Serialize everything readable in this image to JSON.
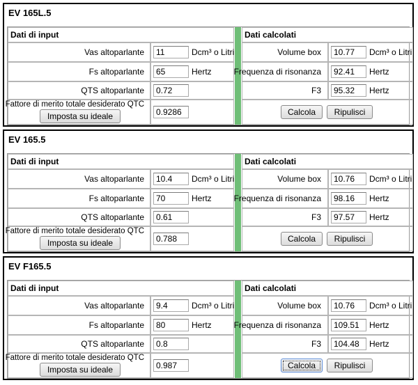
{
  "panels": [
    {
      "title": "EV 165L.5",
      "input_header": "Dati di input",
      "calc_header": "Dati calcolati",
      "vas_label": "Vas altoparlante",
      "vas_value": "11",
      "vas_unit": "Dcm³ o Litri",
      "fs_label": "Fs altoparlante",
      "fs_value": "65",
      "fs_unit": "Hertz",
      "qts_label": "QTS altoparlante",
      "qts_value": "0.72",
      "qtc_label": "Fattore di merito totale desiderato QTC",
      "qtc_value": "0.9286",
      "ideal_button": "Imposta su ideale",
      "vb_label": "Volume box",
      "vb_value": "10.77",
      "vb_unit": "Dcm³ o Litri",
      "fr_label": "Frequenza di risonanza",
      "fr_value": "92.41",
      "fr_unit": "Hertz",
      "f3_label": "F3",
      "f3_value": "95.32",
      "f3_unit": "Hertz",
      "calc_button": "Calcola",
      "clear_button": "Ripulisci"
    },
    {
      "title": "EV 165.5",
      "input_header": "Dati di input",
      "calc_header": "Dati calcolati",
      "vas_label": "Vas altoparlante",
      "vas_value": "10.4",
      "vas_unit": "Dcm³ o Litri",
      "fs_label": "Fs altoparlante",
      "fs_value": "70",
      "fs_unit": "Hertz",
      "qts_label": "QTS altoparlante",
      "qts_value": "0.61",
      "qtc_label": "Fattore di merito totale desiderato QTC",
      "qtc_value": "0.788",
      "ideal_button": "Imposta su ideale",
      "vb_label": "Volume box",
      "vb_value": "10.76",
      "vb_unit": "Dcm³ o Litri",
      "fr_label": "Frequenza di risonanza",
      "fr_value": "98.16",
      "fr_unit": "Hertz",
      "f3_label": "F3",
      "f3_value": "97.57",
      "f3_unit": "Hertz",
      "calc_button": "Calcola",
      "clear_button": "Ripulisci"
    },
    {
      "title": "EV F165.5",
      "input_header": "Dati di input",
      "calc_header": "Dati calcolati",
      "vas_label": "Vas altoparlante",
      "vas_value": "9.4",
      "vas_unit": "Dcm³ o Litri",
      "fs_label": "Fs altoparlante",
      "fs_value": "80",
      "fs_unit": "Hertz",
      "qts_label": "QTS altoparlante",
      "qts_value": "0.8",
      "qtc_label": "Fattore di merito totale desiderato QTC",
      "qtc_value": "0.987",
      "ideal_button": "Imposta su ideale",
      "vb_label": "Volume box",
      "vb_value": "10.76",
      "vb_unit": "Dcm³ o Litri",
      "fr_label": "Frequenza di risonanza",
      "fr_value": "109.51",
      "fr_unit": "Hertz",
      "f3_label": "F3",
      "f3_value": "104.48",
      "f3_unit": "Hertz",
      "calc_button": "Calcola",
      "clear_button": "Ripulisci"
    }
  ]
}
